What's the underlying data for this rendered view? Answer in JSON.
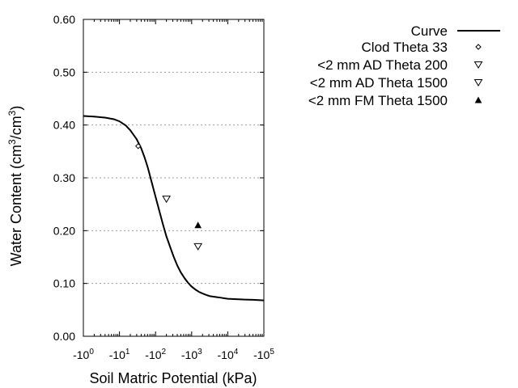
{
  "chart_data": {
    "type": "scatter",
    "title": "",
    "xlabel": "Soil Matric Potential (kPa)",
    "ylabel_main": "Water Content (cm",
    "ylabel_sup1": "3",
    "ylabel_mid": "/cm",
    "ylabel_sup2": "3",
    "ylabel_end": ")",
    "x_scale": "log",
    "x_axis_negative": true,
    "xlim": [
      1,
      100000
    ],
    "ylim": [
      0,
      0.6
    ],
    "x_ticks": [
      {
        "value": 1,
        "base": "-10",
        "exp": "0"
      },
      {
        "value": 10,
        "base": "-10",
        "exp": "1"
      },
      {
        "value": 100,
        "base": "-10",
        "exp": "2"
      },
      {
        "value": 1000,
        "base": "-10",
        "exp": "3"
      },
      {
        "value": 10000,
        "base": "-10",
        "exp": "4"
      },
      {
        "value": 100000,
        "base": "-10",
        "exp": "5"
      }
    ],
    "y_ticks": [
      {
        "value": 0.0,
        "label": "0.00"
      },
      {
        "value": 0.1,
        "label": "0.10"
      },
      {
        "value": 0.2,
        "label": "0.20"
      },
      {
        "value": 0.3,
        "label": "0.30"
      },
      {
        "value": 0.4,
        "label": "0.40"
      },
      {
        "value": 0.5,
        "label": "0.50"
      },
      {
        "value": 0.6,
        "label": "0.60"
      }
    ],
    "grid": {
      "horizontal": true,
      "style": "dotted"
    },
    "legend_position": "top-right-outside",
    "curve": {
      "name": "Curve",
      "color": "#000000",
      "x": [
        1,
        2,
        4,
        7,
        10,
        15,
        20,
        30,
        40,
        50,
        60,
        70,
        80,
        100,
        130,
        160,
        200,
        260,
        320,
        400,
        500,
        650,
        800,
        1000,
        1300,
        1600,
        2000,
        2600,
        3200,
        4000,
        5000,
        6500,
        8000,
        10000,
        15000,
        20000,
        30000,
        50000,
        100000
      ],
      "y": [
        0.417,
        0.416,
        0.414,
        0.411,
        0.407,
        0.399,
        0.39,
        0.373,
        0.356,
        0.338,
        0.321,
        0.304,
        0.289,
        0.264,
        0.235,
        0.212,
        0.189,
        0.167,
        0.15,
        0.134,
        0.121,
        0.109,
        0.101,
        0.094,
        0.088,
        0.084,
        0.081,
        0.078,
        0.076,
        0.075,
        0.074,
        0.073,
        0.072,
        0.071,
        0.0705,
        0.07,
        0.0695,
        0.069,
        0.068
      ]
    },
    "series": [
      {
        "name": "Clod Theta 33",
        "marker": "diamond-open",
        "points": [
          {
            "x": 33,
            "y": 0.36
          }
        ]
      },
      {
        "name": "<2 mm AD Theta 200",
        "marker": "triangle-down-open",
        "points": [
          {
            "x": 200,
            "y": 0.26
          }
        ]
      },
      {
        "name": "<2 mm AD Theta 1500",
        "marker": "triangle-down-open",
        "points": [
          {
            "x": 1500,
            "y": 0.17
          }
        ]
      },
      {
        "name": "<2 mm FM Theta 1500",
        "marker": "triangle-up-filled",
        "points": [
          {
            "x": 1500,
            "y": 0.21
          }
        ]
      }
    ]
  }
}
